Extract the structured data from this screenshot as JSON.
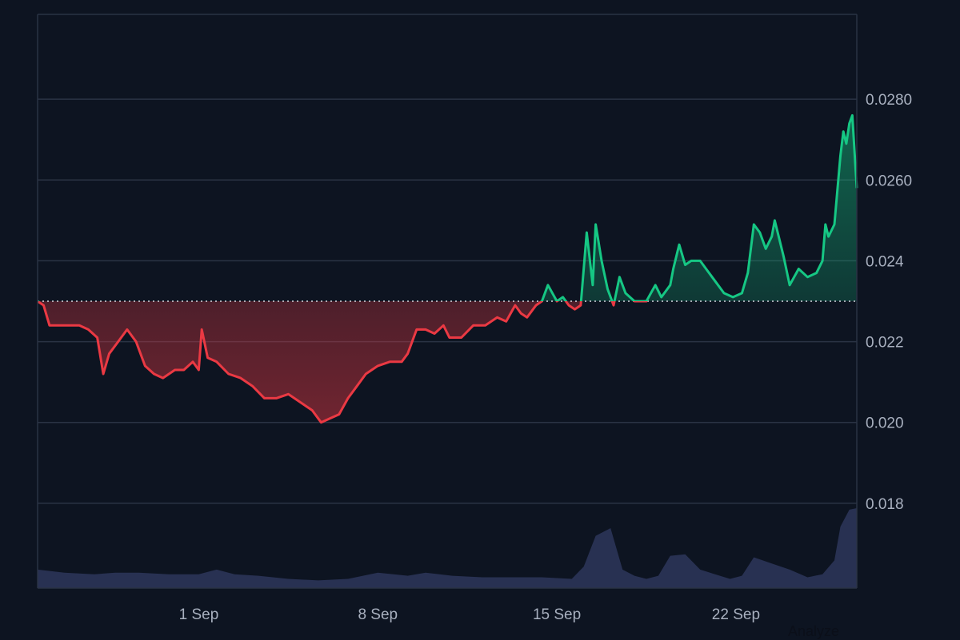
{
  "chart_data": {
    "type": "line",
    "title": "",
    "xlabel": "",
    "ylabel": "",
    "baseline": 0.023,
    "ylim": [
      0.0159,
      0.0301
    ],
    "x_range_days": [
      26.6,
      53.3
    ],
    "x_ticks": [
      {
        "day": 32,
        "label": "1 Sep"
      },
      {
        "day": 38,
        "label": "8 Sep"
      },
      {
        "day": 44,
        "label": "15 Sep"
      },
      {
        "day": 50,
        "label": "22 Sep"
      }
    ],
    "y_ticks": [
      {
        "value": 0.028,
        "label": "0.0280"
      },
      {
        "value": 0.026,
        "label": "0.0260"
      },
      {
        "value": 0.024,
        "label": "0.024"
      },
      {
        "value": 0.022,
        "label": "0.022"
      },
      {
        "value": 0.02,
        "label": "0.020"
      },
      {
        "value": 0.018,
        "label": "0.018"
      }
    ],
    "series": [
      {
        "values": [
          [
            26.6,
            0.023
          ],
          [
            26.8,
            0.0229
          ],
          [
            27.0,
            0.0224
          ],
          [
            27.3,
            0.0224
          ],
          [
            27.6,
            0.0224
          ],
          [
            28.0,
            0.0224
          ],
          [
            28.3,
            0.0223
          ],
          [
            28.6,
            0.0221
          ],
          [
            28.8,
            0.0212
          ],
          [
            29.0,
            0.0217
          ],
          [
            29.3,
            0.022
          ],
          [
            29.6,
            0.0223
          ],
          [
            29.9,
            0.022
          ],
          [
            30.2,
            0.0214
          ],
          [
            30.5,
            0.0212
          ],
          [
            30.8,
            0.0211
          ],
          [
            31.2,
            0.0213
          ],
          [
            31.5,
            0.0213
          ],
          [
            31.8,
            0.0215
          ],
          [
            32.0,
            0.0213
          ],
          [
            32.1,
            0.0223
          ],
          [
            32.3,
            0.0216
          ],
          [
            32.6,
            0.0215
          ],
          [
            33.0,
            0.0212
          ],
          [
            33.4,
            0.0211
          ],
          [
            33.8,
            0.0209
          ],
          [
            34.2,
            0.0206
          ],
          [
            34.6,
            0.0206
          ],
          [
            35.0,
            0.0207
          ],
          [
            35.4,
            0.0205
          ],
          [
            35.8,
            0.0203
          ],
          [
            36.1,
            0.02
          ],
          [
            36.4,
            0.0201
          ],
          [
            36.7,
            0.0202
          ],
          [
            37.0,
            0.0206
          ],
          [
            37.3,
            0.0209
          ],
          [
            37.6,
            0.0212
          ],
          [
            38.0,
            0.0214
          ],
          [
            38.4,
            0.0215
          ],
          [
            38.8,
            0.0215
          ],
          [
            39.0,
            0.0217
          ],
          [
            39.3,
            0.0223
          ],
          [
            39.6,
            0.0223
          ],
          [
            39.9,
            0.0222
          ],
          [
            40.2,
            0.0224
          ],
          [
            40.4,
            0.0221
          ],
          [
            40.8,
            0.0221
          ],
          [
            41.2,
            0.0224
          ],
          [
            41.6,
            0.0224
          ],
          [
            42.0,
            0.0226
          ],
          [
            42.3,
            0.0225
          ],
          [
            42.6,
            0.0229
          ],
          [
            42.8,
            0.0227
          ],
          [
            43.0,
            0.0226
          ],
          [
            43.3,
            0.0229
          ],
          [
            43.5,
            0.023
          ],
          [
            43.7,
            0.0234
          ],
          [
            44.0,
            0.023
          ],
          [
            44.2,
            0.0231
          ],
          [
            44.4,
            0.0229
          ],
          [
            44.6,
            0.0228
          ],
          [
            44.8,
            0.0229
          ],
          [
            45.0,
            0.0247
          ],
          [
            45.2,
            0.0234
          ],
          [
            45.3,
            0.0249
          ],
          [
            45.5,
            0.024
          ],
          [
            45.7,
            0.0233
          ],
          [
            45.9,
            0.0229
          ],
          [
            46.1,
            0.0236
          ],
          [
            46.3,
            0.0232
          ],
          [
            46.6,
            0.023
          ],
          [
            47.0,
            0.023
          ],
          [
            47.3,
            0.0234
          ],
          [
            47.5,
            0.0231
          ],
          [
            47.8,
            0.0234
          ],
          [
            47.9,
            0.0238
          ],
          [
            48.1,
            0.0244
          ],
          [
            48.3,
            0.0239
          ],
          [
            48.5,
            0.024
          ],
          [
            48.8,
            0.024
          ],
          [
            49.0,
            0.0238
          ],
          [
            49.3,
            0.0235
          ],
          [
            49.6,
            0.0232
          ],
          [
            49.9,
            0.0231
          ],
          [
            50.2,
            0.0232
          ],
          [
            50.4,
            0.0237
          ],
          [
            50.6,
            0.0249
          ],
          [
            50.8,
            0.0247
          ],
          [
            51.0,
            0.0243
          ],
          [
            51.2,
            0.0246
          ],
          [
            51.3,
            0.025
          ],
          [
            51.6,
            0.0241
          ],
          [
            51.8,
            0.0234
          ],
          [
            52.1,
            0.0238
          ],
          [
            52.4,
            0.0236
          ],
          [
            52.7,
            0.0237
          ],
          [
            52.9,
            0.024
          ],
          [
            53.0,
            0.0249
          ],
          [
            53.1,
            0.0246
          ],
          [
            53.3,
            0.0249
          ],
          [
            53.5,
            0.0266
          ],
          [
            53.6,
            0.0272
          ],
          [
            53.7,
            0.0269
          ],
          [
            53.8,
            0.0274
          ],
          [
            53.9,
            0.0276
          ],
          [
            54.0,
            0.0264
          ],
          [
            54.05,
            0.0258
          ]
        ]
      }
    ],
    "volume": [
      [
        26.6,
        0.0012
      ],
      [
        27.5,
        0.001
      ],
      [
        28.5,
        0.0009
      ],
      [
        29.2,
        0.001
      ],
      [
        30.0,
        0.001
      ],
      [
        31.0,
        0.0009
      ],
      [
        32.0,
        0.0009
      ],
      [
        32.6,
        0.0012
      ],
      [
        33.2,
        0.0009
      ],
      [
        34.0,
        0.0008
      ],
      [
        35.0,
        0.0006
      ],
      [
        36.0,
        0.0005
      ],
      [
        37.0,
        0.0006
      ],
      [
        38.0,
        0.001
      ],
      [
        39.0,
        0.0008
      ],
      [
        39.6,
        0.001
      ],
      [
        40.5,
        0.0008
      ],
      [
        41.5,
        0.0007
      ],
      [
        42.5,
        0.0007
      ],
      [
        43.5,
        0.0007
      ],
      [
        44.5,
        0.0006
      ],
      [
        44.9,
        0.0014
      ],
      [
        45.3,
        0.0034
      ],
      [
        45.8,
        0.0039
      ],
      [
        46.2,
        0.0012
      ],
      [
        46.6,
        0.0008
      ],
      [
        47.0,
        0.0006
      ],
      [
        47.4,
        0.0008
      ],
      [
        47.8,
        0.0021
      ],
      [
        48.3,
        0.0022
      ],
      [
        48.8,
        0.0012
      ],
      [
        49.3,
        0.0009
      ],
      [
        49.8,
        0.0006
      ],
      [
        50.2,
        0.0008
      ],
      [
        50.6,
        0.002
      ],
      [
        51.2,
        0.0016
      ],
      [
        51.8,
        0.0012
      ],
      [
        52.4,
        0.0007
      ],
      [
        52.9,
        0.0009
      ],
      [
        53.3,
        0.0018
      ],
      [
        53.5,
        0.004
      ],
      [
        53.8,
        0.0051
      ],
      [
        54.05,
        0.0052
      ]
    ],
    "grid": true,
    "legend": "none",
    "colors": {
      "background": "#0d1421",
      "up_line": "#16c784",
      "down_line": "#ea3943",
      "grid": "#2a3344",
      "baseline_dots": "#d4d8df",
      "axis_text": "#a8b0bf",
      "volume": "#2b3458"
    }
  },
  "footer": {
    "link_label": "Analyze"
  }
}
